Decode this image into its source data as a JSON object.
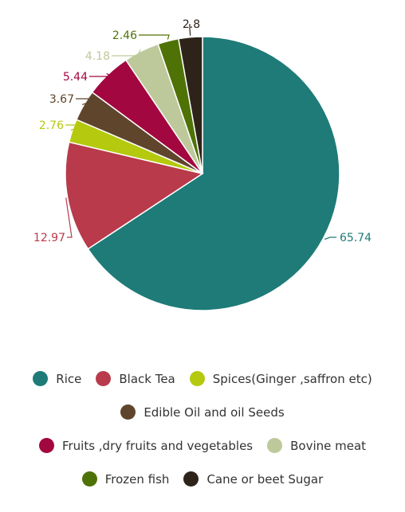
{
  "chart_data": {
    "type": "pie",
    "title": "",
    "slices": [
      {
        "name": "Rice",
        "value": 65.74,
        "label": "65.74",
        "color": "#1e7b78"
      },
      {
        "name": "Black Tea",
        "value": 12.97,
        "label": "12.97",
        "color": "#b83a4b"
      },
      {
        "name": "Spices(Ginger ,saffron etc)",
        "value": 2.76,
        "label": "2.76",
        "color": "#b5c90e"
      },
      {
        "name": "Edible Oil and oil Seeds",
        "value": 3.67,
        "label": "3.67",
        "color": "#5e452c"
      },
      {
        "name": "Fruits ,dry fruits and vegetables",
        "value": 5.44,
        "label": "5.44",
        "color": "#a3073f"
      },
      {
        "name": "Bovine meat",
        "value": 4.18,
        "label": "4.18",
        "color": "#bdc99a"
      },
      {
        "name": "Frozen fish",
        "value": 2.46,
        "label": "2.46",
        "color": "#4f7207"
      },
      {
        "name": "Cane or beet Sugar",
        "value": 2.8,
        "label": "2.8",
        "color": "#2e2319"
      }
    ],
    "legend_position": "bottom"
  }
}
